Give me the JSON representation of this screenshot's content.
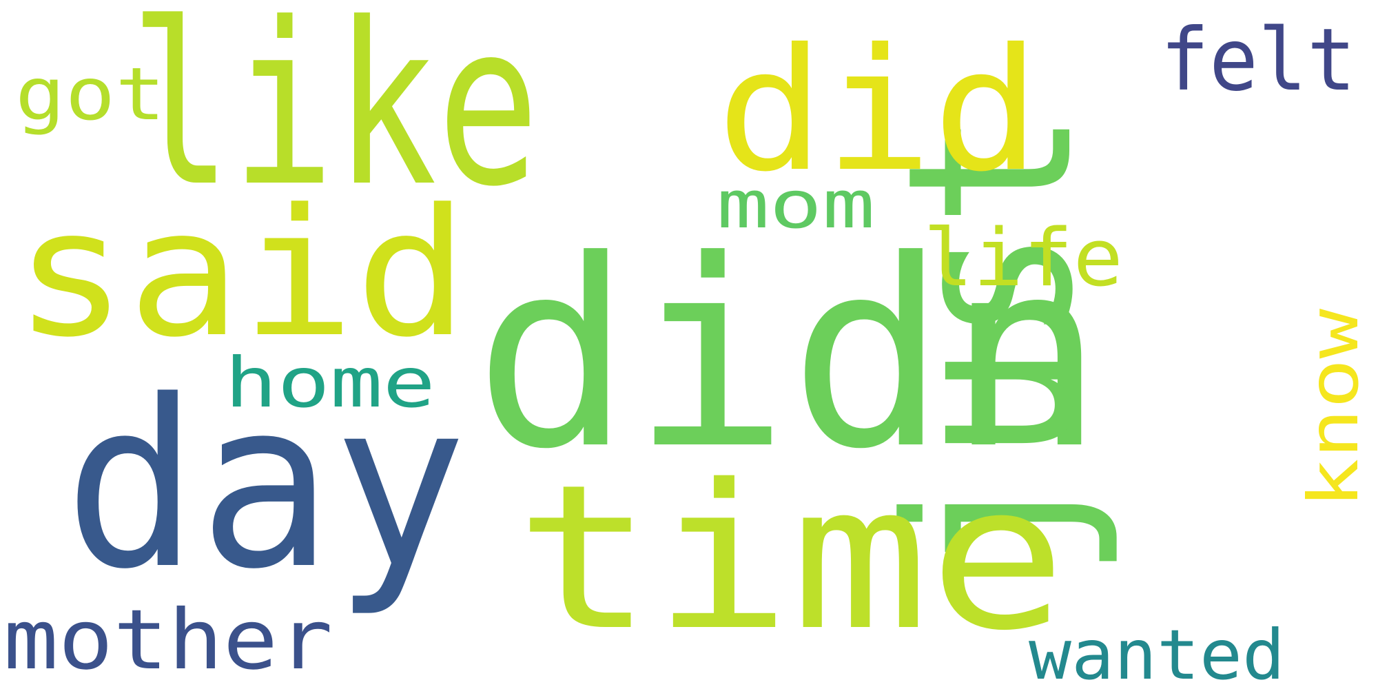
{
  "words": [
    {
      "text": "didn",
      "color": "#6ccf5a"
    },
    {
      "text": "like",
      "color": "#b8de29"
    },
    {
      "text": "just",
      "color": "#6ccf5a"
    },
    {
      "text": "time",
      "color": "#bde02a"
    },
    {
      "text": "day",
      "color": "#38598c"
    },
    {
      "text": "said",
      "color": "#d0e11c"
    },
    {
      "text": "did",
      "color": "#e5e419"
    },
    {
      "text": "home",
      "color": "#20a386"
    },
    {
      "text": "mother",
      "color": "#3b518b"
    },
    {
      "text": "felt",
      "color": "#404788"
    },
    {
      "text": "mom",
      "color": "#5ec962"
    },
    {
      "text": "life",
      "color": "#c2df23"
    },
    {
      "text": "know",
      "color": "#f5e61e"
    },
    {
      "text": "got",
      "color": "#b5de2b"
    },
    {
      "text": "wanted",
      "color": "#23898e"
    }
  ]
}
